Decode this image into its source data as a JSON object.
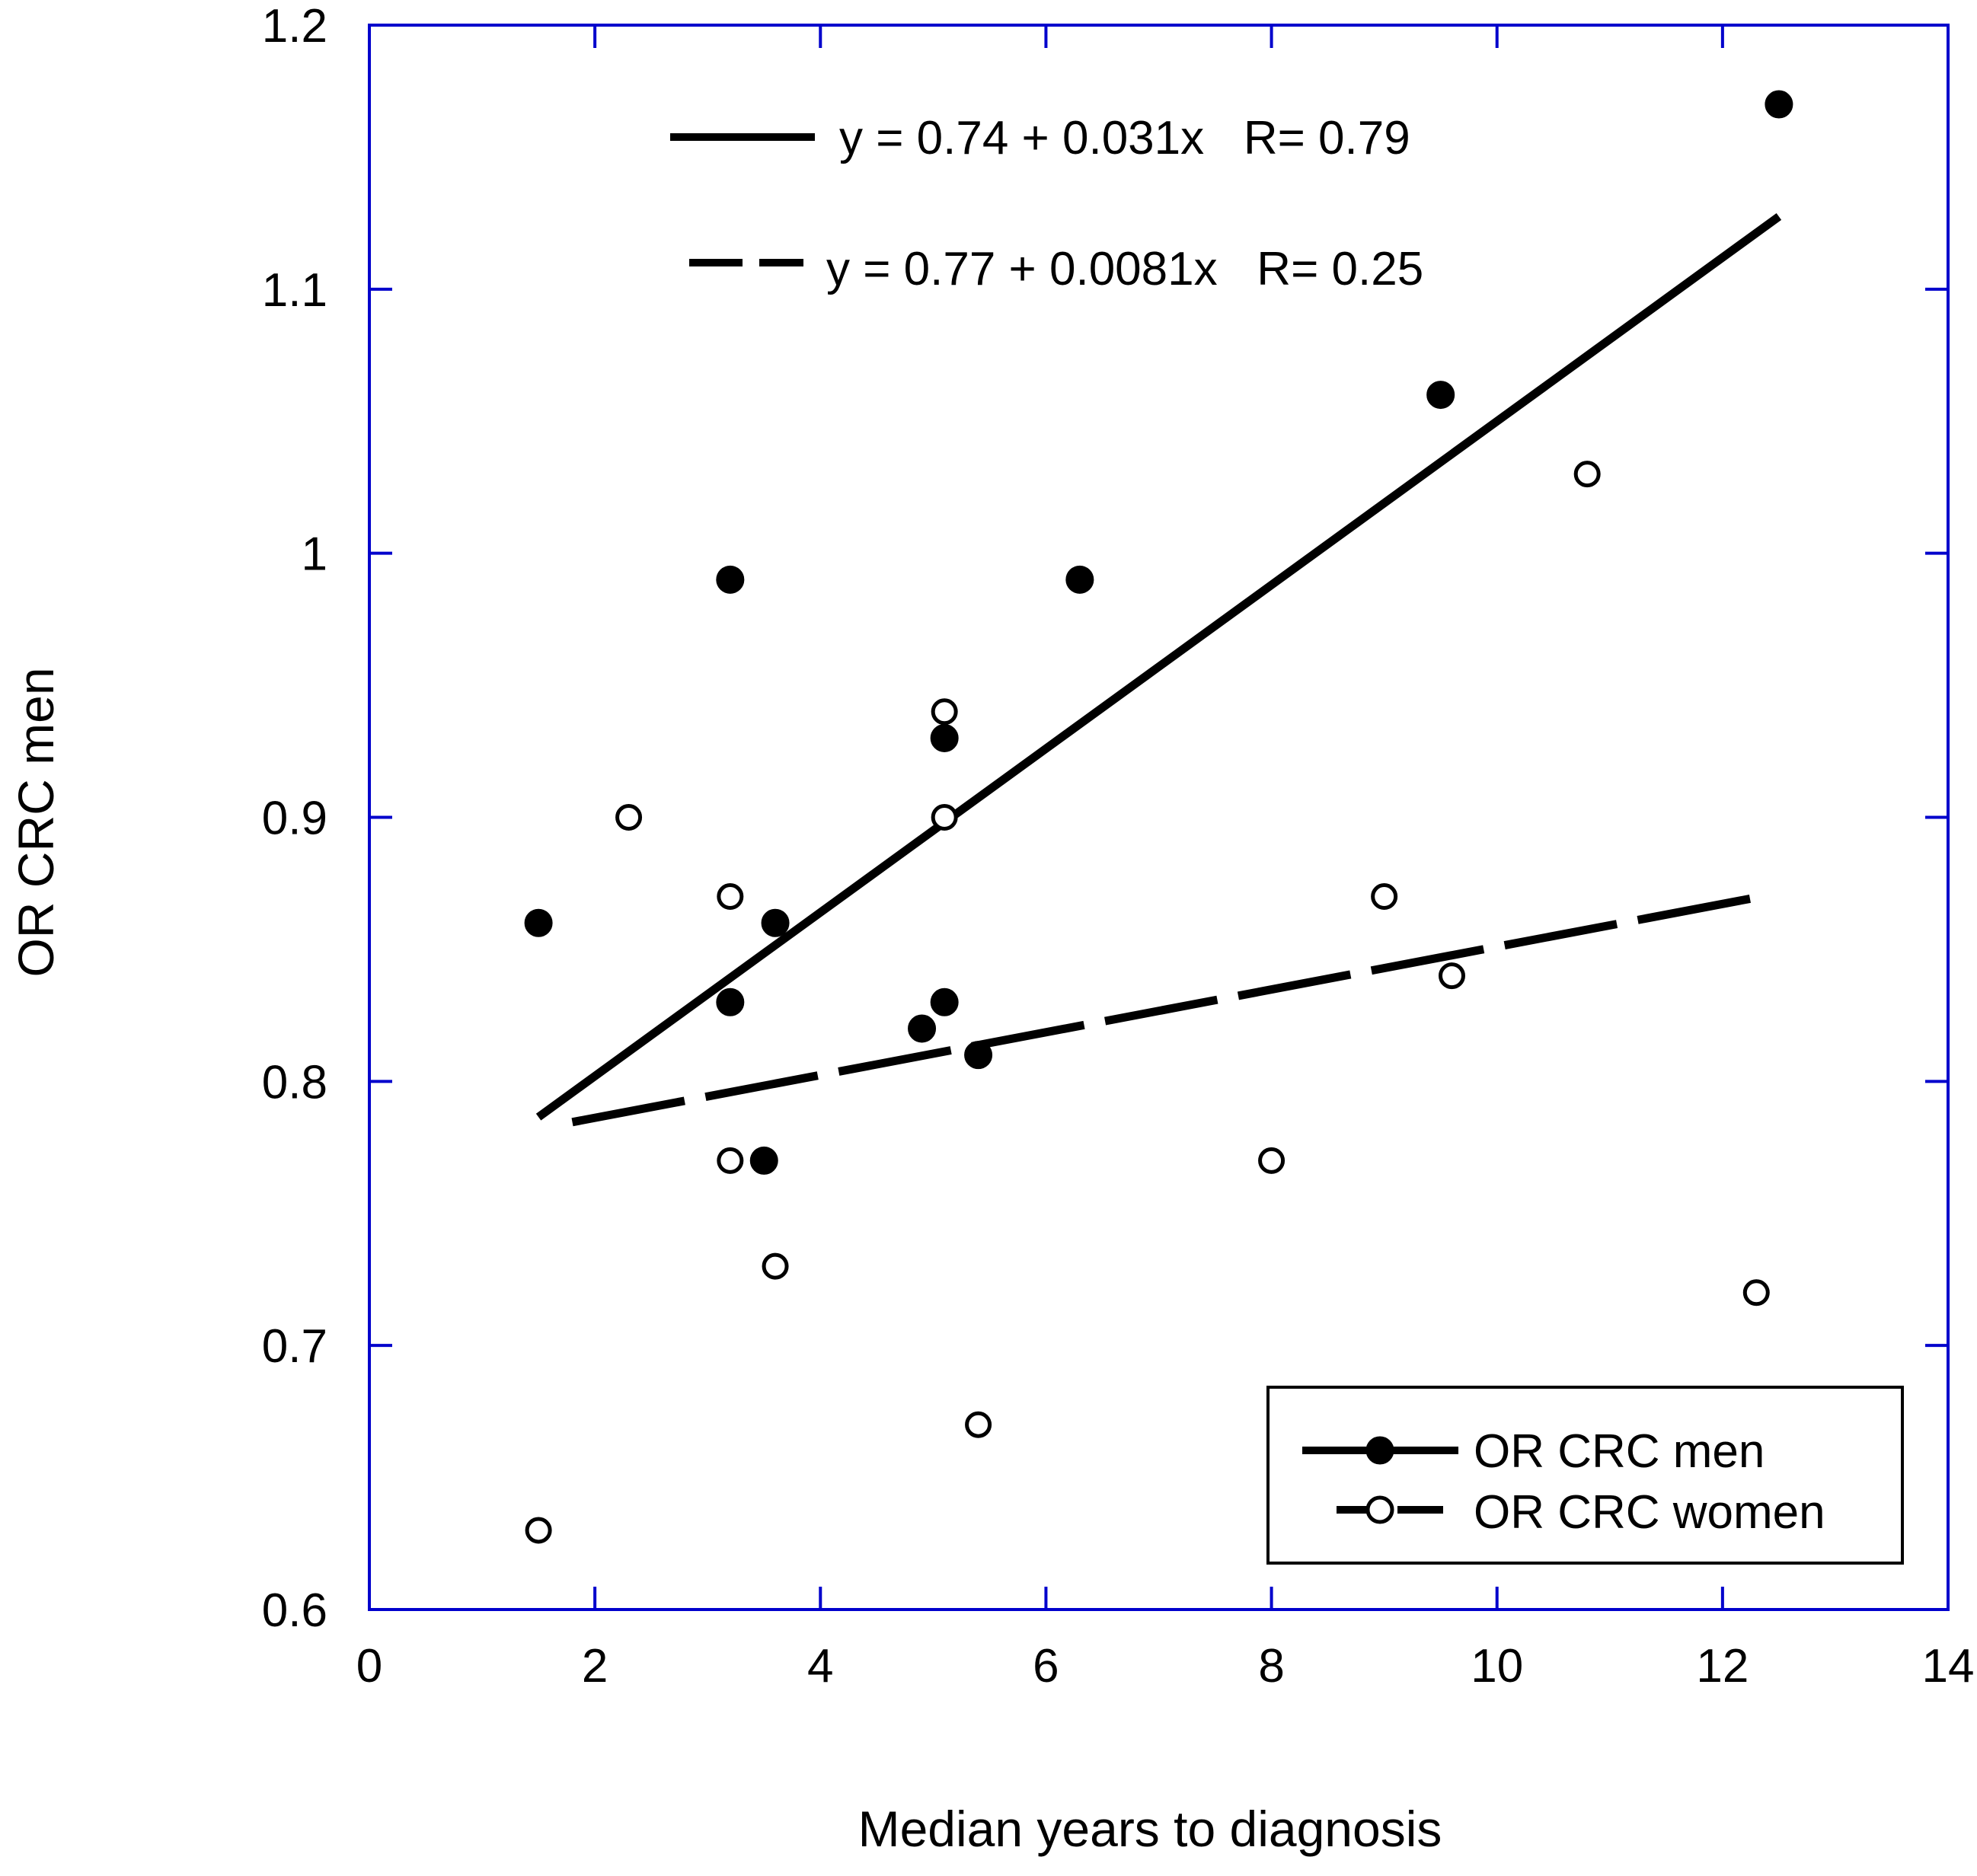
{
  "chart_data": {
    "type": "scatter",
    "xlabel": "Median years to diagnosis",
    "ylabel": "OR CRC men",
    "xlim": [
      0,
      14
    ],
    "ylim": [
      0.6,
      1.2
    ],
    "x_ticks": [
      "0",
      "2",
      "4",
      "6",
      "8",
      "10",
      "12",
      "14"
    ],
    "y_ticks": [
      "0.6",
      "0.7",
      "0.8",
      "0.9",
      "1",
      "1.1",
      "1.2"
    ],
    "grid": false,
    "legend_position": "bottom-right",
    "series": [
      {
        "name": "OR CRC men",
        "marker": "filled-circle",
        "points": [
          {
            "x": 1.5,
            "y": 0.86
          },
          {
            "x": 3.2,
            "y": 0.99
          },
          {
            "x": 3.2,
            "y": 0.83
          },
          {
            "x": 3.5,
            "y": 0.77
          },
          {
            "x": 3.6,
            "y": 0.86
          },
          {
            "x": 4.9,
            "y": 0.82
          },
          {
            "x": 5.1,
            "y": 0.93
          },
          {
            "x": 5.1,
            "y": 0.83
          },
          {
            "x": 5.4,
            "y": 0.81
          },
          {
            "x": 6.3,
            "y": 0.99
          },
          {
            "x": 9.5,
            "y": 1.06
          },
          {
            "x": 12.5,
            "y": 1.17
          }
        ],
        "fit": {
          "intercept": 0.74,
          "slope": 0.031,
          "x_start": 1.5,
          "x_end": 12.5,
          "style": "solid",
          "equation": "y = 0.74 + 0.031x   R= 0.79"
        }
      },
      {
        "name": "OR CRC women",
        "marker": "open-circle",
        "points": [
          {
            "x": 1.5,
            "y": 0.63
          },
          {
            "x": 2.3,
            "y": 0.9
          },
          {
            "x": 3.2,
            "y": 0.87
          },
          {
            "x": 3.2,
            "y": 0.77
          },
          {
            "x": 3.6,
            "y": 0.73
          },
          {
            "x": 5.1,
            "y": 0.94
          },
          {
            "x": 5.1,
            "y": 0.9
          },
          {
            "x": 5.4,
            "y": 0.67
          },
          {
            "x": 8.0,
            "y": 0.77
          },
          {
            "x": 9.0,
            "y": 0.87
          },
          {
            "x": 9.6,
            "y": 0.84
          },
          {
            "x": 10.8,
            "y": 1.03
          },
          {
            "x": 12.3,
            "y": 0.72
          }
        ],
        "fit": {
          "intercept": 0.77,
          "slope": 0.0081,
          "x_start": 1.8,
          "x_end": 12.3,
          "style": "dashed",
          "equation": "y = 0.77 + 0.0081x   R= 0.25"
        }
      }
    ],
    "colors": {
      "frame": "#0000cc",
      "ink": "#000000",
      "background": "#ffffff"
    }
  }
}
